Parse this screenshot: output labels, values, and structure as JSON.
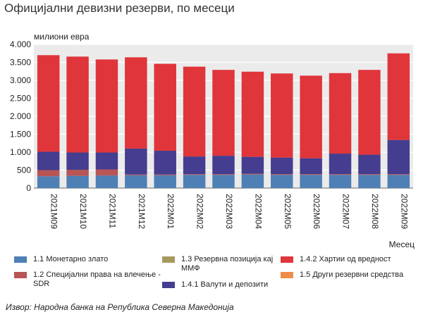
{
  "title": "Официјални девизни резерви, по месеци",
  "source": "Извор: Народна банка на Република Северна Македонија",
  "chart_data": {
    "type": "bar",
    "stacked": true,
    "ylabel": "милиони евра",
    "xlabel": "Месец",
    "ylim": [
      0,
      4000
    ],
    "yticks": [
      0,
      500,
      1000,
      1500,
      2000,
      2500,
      3000,
      3500,
      4000
    ],
    "ytick_labels": [
      "0",
      "500",
      "1.000",
      "1.500",
      "2.000",
      "2.500",
      "3.000",
      "3.500",
      "4.000"
    ],
    "grid": true,
    "legend_position": "bottom",
    "categories": [
      "2021M09",
      "2021M10",
      "2021M11",
      "2021M12",
      "2022M01",
      "2022M02",
      "2022M03",
      "2022M04",
      "2022M05",
      "2022M06",
      "2022M07",
      "2022M08",
      "2022M09"
    ],
    "series": [
      {
        "name": "1.1 Монетарно злато",
        "color": "#4e7fb5",
        "values": [
          330,
          340,
          350,
          360,
          360,
          370,
          370,
          380,
          370,
          370,
          370,
          370,
          370
        ]
      },
      {
        "name": "1.2 Специјални права на влечење - SDR",
        "color": "#b85555",
        "values": [
          170,
          170,
          170,
          20,
          20,
          20,
          20,
          20,
          20,
          20,
          20,
          20,
          20
        ]
      },
      {
        "name": "1.3 Резервна позиција кај ММФ",
        "color": "#a89a5e",
        "values": [
          0,
          0,
          0,
          0,
          0,
          0,
          0,
          0,
          0,
          0,
          0,
          0,
          0
        ]
      },
      {
        "name": "1.4.1 Валути и депозити",
        "color": "#443d90",
        "values": [
          510,
          480,
          470,
          720,
          660,
          490,
          510,
          470,
          460,
          440,
          570,
          540,
          950
        ]
      },
      {
        "name": "1.4.2 Хартии од вредност",
        "color": "#e0353a",
        "values": [
          2690,
          2670,
          2590,
          2540,
          2420,
          2500,
          2390,
          2370,
          2340,
          2300,
          2240,
          2360,
          2410
        ]
      },
      {
        "name": "1.5 Други резервни средства",
        "color": "#ef8c4a",
        "values": [
          0,
          0,
          0,
          0,
          0,
          0,
          0,
          0,
          0,
          0,
          0,
          0,
          0
        ]
      }
    ]
  }
}
